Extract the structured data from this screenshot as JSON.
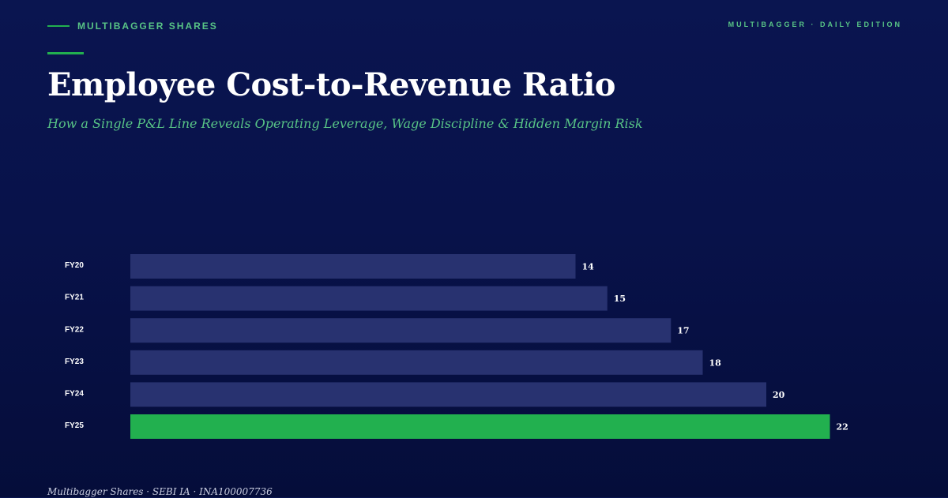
{
  "header": {
    "brand": "MULTIBAGGER SHARES",
    "edition": "MULTIBAGGER · DAILY EDITION"
  },
  "title": "Employee Cost-to-Revenue Ratio",
  "subtitle": "How a Single P&L Line Reveals Operating Leverage, Wage Discipline & Hidden Margin Risk",
  "footer": "Multibagger Shares · SEBI IA · INA100007736",
  "colors": {
    "background": "#08124a",
    "bar": "#283270",
    "highlight": "#22b04f",
    "accent_text": "#58c486"
  },
  "chart_data": {
    "type": "bar",
    "orientation": "horizontal",
    "categories": [
      "FY20",
      "FY21",
      "FY22",
      "FY23",
      "FY24",
      "FY25"
    ],
    "values": [
      14,
      15,
      17,
      18,
      20,
      22
    ],
    "highlight_category": "FY25",
    "grid": false,
    "legend": "none"
  }
}
